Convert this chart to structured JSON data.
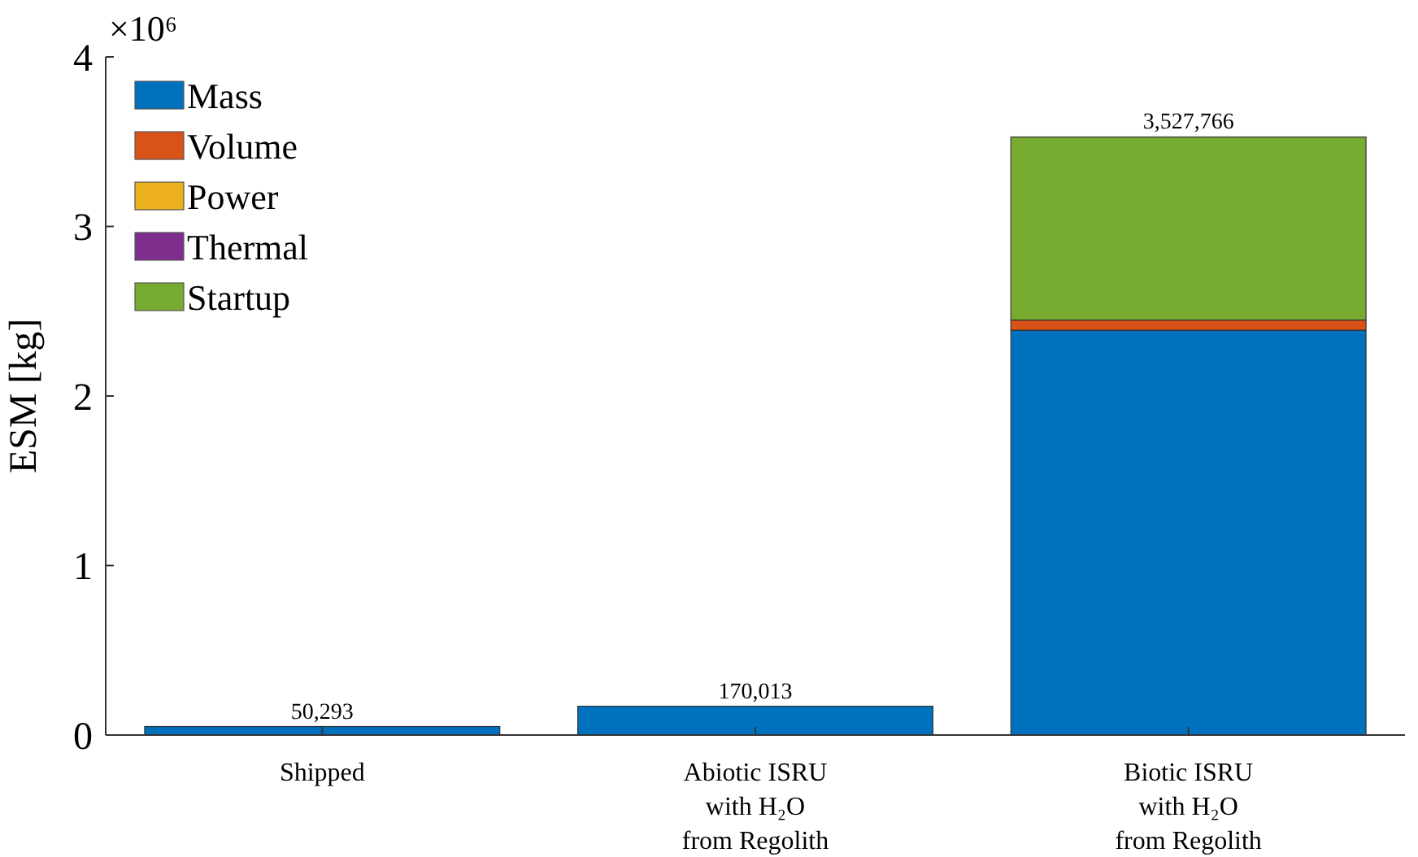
{
  "chart_data": {
    "type": "bar",
    "stacked": true,
    "ylabel": "ESM [kg]",
    "categories": [
      "Shipped",
      "Abiotic ISRU\nwith H₂O\nfrom Regolith",
      "Biotic ISRU\nwith H₂O\nfrom Regolith"
    ],
    "series": [
      {
        "name": "Mass",
        "color": "#0072bd",
        "values": [
          0.050293,
          0.170013,
          2.388
        ]
      },
      {
        "name": "Volume",
        "color": "#d95319",
        "values": [
          0,
          0,
          0.06
        ]
      },
      {
        "name": "Power",
        "color": "#edb120",
        "values": [
          0,
          0,
          0
        ]
      },
      {
        "name": "Thermal",
        "color": "#7e2f8e",
        "values": [
          0,
          0,
          0
        ]
      },
      {
        "name": "Startup",
        "color": "#77ac30",
        "values": [
          0,
          0,
          1.079766
        ]
      }
    ],
    "totals": [
      "50,293",
      "170,013",
      "3,527,766"
    ],
    "ylim": [
      0,
      4
    ],
    "yticks": [
      0,
      1,
      2,
      3,
      4
    ],
    "annotations": [
      "×10⁶"
    ],
    "legend": "top left",
    "grid": false
  }
}
